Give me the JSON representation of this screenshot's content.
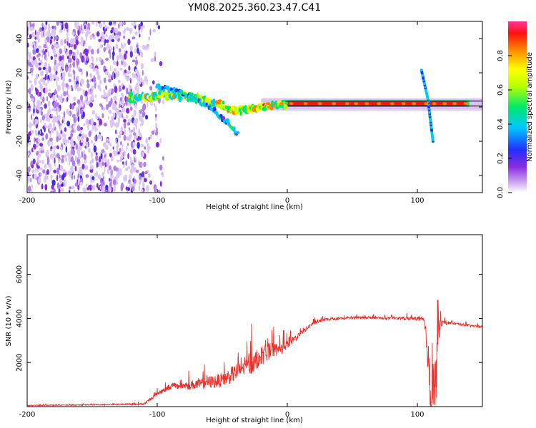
{
  "title": "YM08.2025.360.23.47.C41",
  "chart_data": [
    {
      "type": "heatmap",
      "name": "spectrogram",
      "xlabel": "Height of straight line (km)",
      "ylabel": "Frequency (Hz)",
      "xlim": [
        -200,
        150
      ],
      "ylim": [
        -50,
        50
      ],
      "xticks": [
        -200,
        -100,
        0,
        100
      ],
      "yticks": [
        -40,
        -20,
        0,
        20,
        40
      ],
      "colorbar": {
        "label": "Normalized spectral amplitude",
        "range": [
          0,
          1
        ],
        "ticks": [
          0.0,
          0.2,
          0.4,
          0.6,
          0.8
        ],
        "tick_labels": [
          "0.0",
          "0.2",
          "0.4",
          "0.6",
          "0.8"
        ]
      },
      "description_series": {
        "noise_region_x": [
          -200,
          -105
        ],
        "trace_center": {
          "x": [
            -120,
            -100,
            -80,
            -60,
            -40,
            -20,
            0,
            80,
            100,
            104,
            110,
            150
          ],
          "y": [
            5,
            7,
            7,
            3,
            -2,
            0,
            2,
            2,
            2,
            3,
            2,
            1
          ]
        },
        "side_branch": {
          "x": [
            -100,
            -80,
            -60,
            -45,
            -40
          ],
          "y": [
            12,
            8,
            0,
            -10,
            -15
          ]
        },
        "spike": {
          "x": [
            103,
            108,
            112
          ],
          "y": [
            22,
            5,
            -20
          ]
        }
      }
    },
    {
      "type": "line",
      "name": "snr",
      "xlabel": "Height of straight line (km)",
      "ylabel": "SNR (10 * v/v)",
      "xlim": [
        -200,
        150
      ],
      "ylim": [
        0,
        7800
      ],
      "xticks": [
        -200,
        -100,
        0,
        100
      ],
      "yticks": [
        2000,
        4000,
        6000
      ],
      "color": "#e8302a",
      "envelope": {
        "x": [
          -200,
          -150,
          -110,
          -100,
          -90,
          -70,
          -50,
          -35,
          -28,
          -22,
          -15,
          -5,
          0,
          10,
          20,
          30,
          40,
          60,
          80,
          100,
          105,
          108,
          110,
          112,
          114,
          116,
          118,
          125,
          150
        ],
        "base": [
          50,
          80,
          120,
          600,
          900,
          1000,
          1200,
          1700,
          2000,
          2200,
          2500,
          2600,
          2800,
          3300,
          3800,
          3950,
          4000,
          4050,
          4000,
          4000,
          3900,
          2500,
          500,
          1500,
          300,
          3500,
          3800,
          3800,
          3600
        ],
        "amp": [
          60,
          70,
          150,
          350,
          450,
          800,
          1100,
          1400,
          1800,
          1500,
          1300,
          900,
          700,
          400,
          250,
          200,
          200,
          200,
          200,
          300,
          600,
          2500,
          4000,
          4500,
          6000,
          2500,
          600,
          200,
          150
        ]
      }
    }
  ]
}
